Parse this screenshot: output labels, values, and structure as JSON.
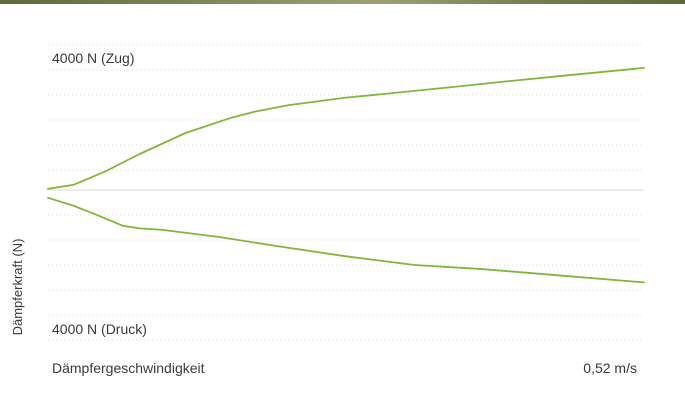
{
  "chart_data": {
    "type": "line",
    "ylabel": "Dämpferkraft (N)",
    "x_start_label": "Dämpfergeschwindigkeit",
    "x_end_label": "0,52 m/s",
    "y_top_label": "4000 N (Zug)",
    "y_bottom_label": "4000 N (Druck)",
    "xlim": [
      0,
      0.52
    ],
    "ylim": [
      -4000,
      4000
    ],
    "series": [
      {
        "x": [
          0,
          0.022,
          0.05,
          0.08,
          0.12,
          0.16,
          0.18,
          0.21,
          0.26,
          0.29,
          0.35,
          0.4,
          0.45,
          0.52
        ],
        "values": [
          40,
          170,
          620,
          1200,
          1900,
          2410,
          2610,
          2830,
          3080,
          3190,
          3420,
          3620,
          3810,
          4070
        ],
        "color": "#80b83a"
      },
      {
        "x": [
          0,
          0.022,
          0.04,
          0.065,
          0.08,
          0.1,
          0.15,
          0.2,
          0.26,
          0.32,
          0.38,
          0.45,
          0.52
        ],
        "values": [
          -260,
          -520,
          -790,
          -1190,
          -1280,
          -1330,
          -1570,
          -1870,
          -2210,
          -2500,
          -2640,
          -2860,
          -3080
        ],
        "color": "#80b83a"
      }
    ],
    "grid": true,
    "legend": "none"
  }
}
